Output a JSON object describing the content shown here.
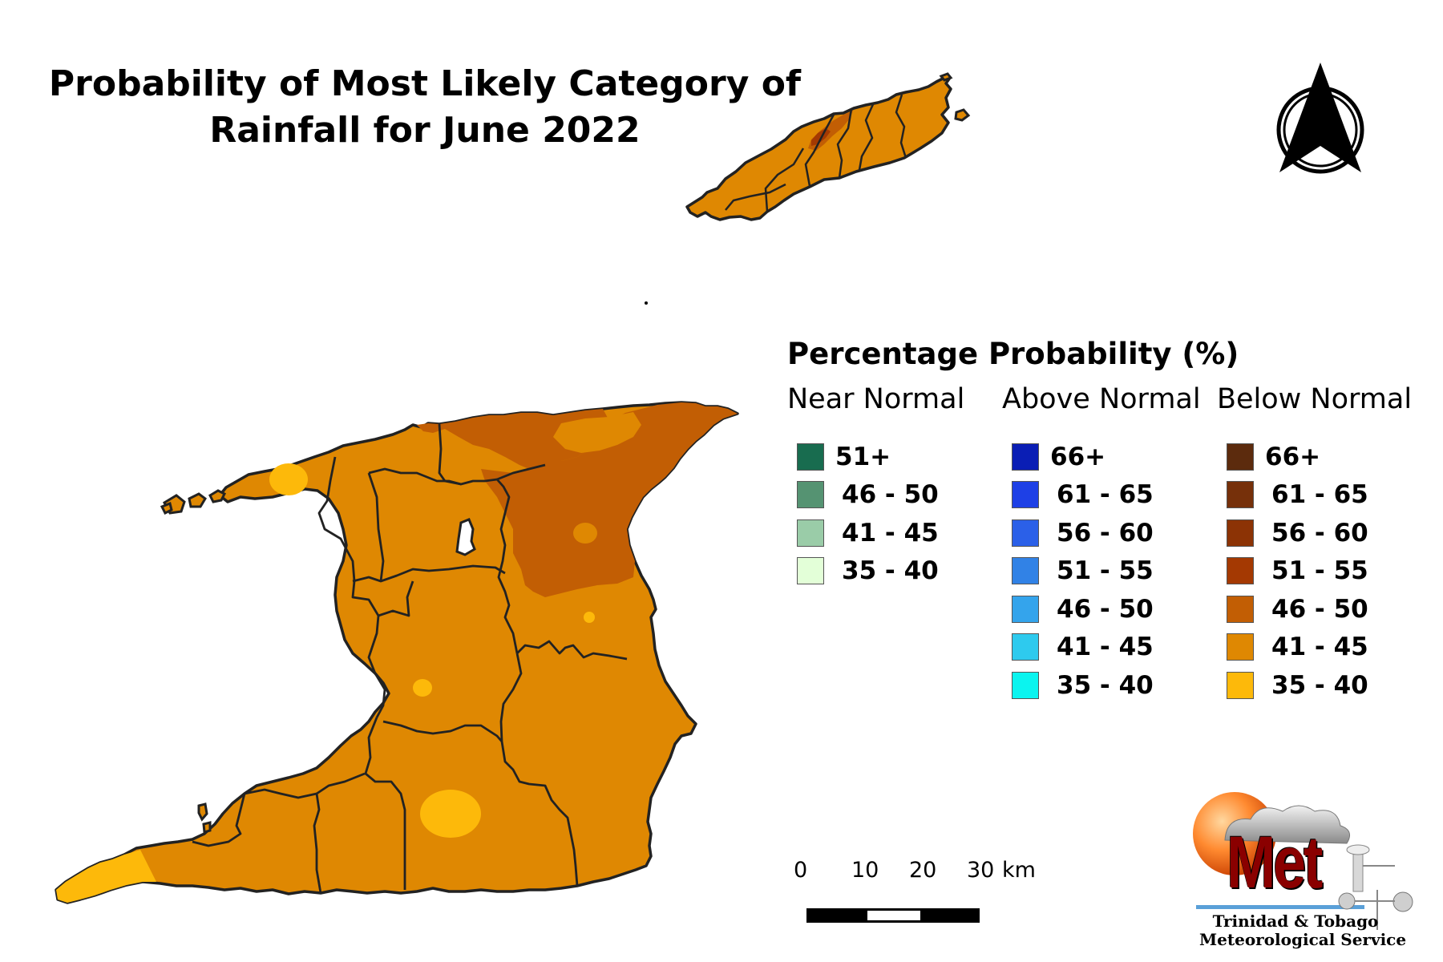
{
  "title": {
    "line1": "Probability of Most Likely Category of",
    "line2": "Rainfall for June 2022"
  },
  "legend": {
    "title": "Percentage Probability (%)",
    "columns": [
      {
        "heading": "Near Normal",
        "items": [
          {
            "label": "51+",
            "color": "#186c4f"
          },
          {
            "label": "46 - 50",
            "color": "#559372"
          },
          {
            "label": "41 - 45",
            "color": "#9acca8"
          },
          {
            "label": "35 - 40",
            "color": "#e3ffd8"
          }
        ]
      },
      {
        "heading": "Above Normal",
        "items": [
          {
            "label": "66+",
            "color": "#0a1eb5"
          },
          {
            "label": "61 - 65",
            "color": "#1e40e6"
          },
          {
            "label": "56 - 60",
            "color": "#2b60e8"
          },
          {
            "label": "51 - 55",
            "color": "#3182e6"
          },
          {
            "label": "46 - 50",
            "color": "#34a4ec"
          },
          {
            "label": "41 - 45",
            "color": "#2ecaee"
          },
          {
            "label": "35 - 40",
            "color": "#0bf4ef"
          }
        ]
      },
      {
        "heading": "Below Normal",
        "items": [
          {
            "label": "66+",
            "color": "#5c2b0d"
          },
          {
            "label": "61 - 65",
            "color": "#76300a"
          },
          {
            "label": "56 - 60",
            "color": "#8c3305"
          },
          {
            "label": "51 - 55",
            "color": "#a43902"
          },
          {
            "label": "46 - 50",
            "color": "#c25e04"
          },
          {
            "label": "41 - 45",
            "color": "#df8802"
          },
          {
            "label": "35 - 40",
            "color": "#fdb90a"
          }
        ]
      }
    ]
  },
  "scale_bar": {
    "ticks": [
      "0",
      "10",
      "20",
      "30"
    ],
    "unit": "km"
  },
  "logo": {
    "wordmark": "Met",
    "line1": "Trinidad & Tobago",
    "line2": "Meteorological Service"
  },
  "north_arrow": {
    "icon": "north-arrow-icon"
  },
  "map_colors": {
    "background": "#ffffff",
    "class_41_45": "#df8802",
    "class_46_50": "#c25e04",
    "class_35_40": "#fdb90a",
    "class_51_55": "#a43902",
    "border": "#222222"
  }
}
